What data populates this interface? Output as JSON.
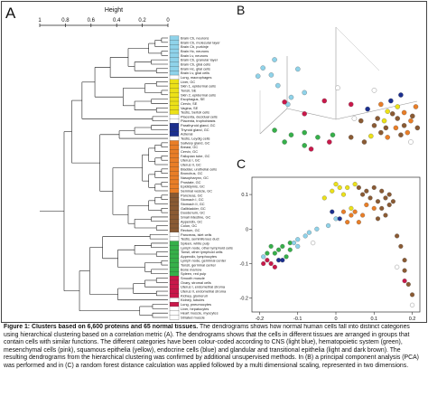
{
  "panel_labels": {
    "a": "A",
    "b": "B",
    "c": "C"
  },
  "caption": {
    "title": "Figure 1: Clusters based on 6,600 proteins and 65 normal tissues.",
    "body": " The dendrograms shows how normal human cells fall into distinct categories using hierarchical clustering based on a correlation metric (A). The dendrograms shows that the cells in different tissues are arranged in groups that contain cells with similar functions. The different categories have been colour-coded according to CNS (light blue), hematopoietic system (green), mesenchymal cells (pink), squamous epithelia (yellow), endocrine cells (blue) and glandular and transitional epithelia (light and dark brown). The resulting dendrograms from the hierarchical clustering was confirmed by additional unsupervised methods. In (B) a principal component analysis (PCA) was performed and in (C) a random forest distance calculation was applied followed by a multi dimensional scaling, represented in two dimensions."
  },
  "colors": {
    "cns": "#8fd3ea",
    "hematopoietic": "#36b04a",
    "mesenchymal": "#c9184a",
    "squamous": "#ece118",
    "endocrine": "#1b2f8f",
    "glandular_light": "#e97e27",
    "glandular_dark": "#8a5a33",
    "other": "#ffffff"
  },
  "chart_data": [
    {
      "type": "dendrogram",
      "panel": "A",
      "xlabel": "Height",
      "x_ticks": [
        "1",
        "0.8",
        "0.6",
        "0.4",
        "0.2",
        "0"
      ],
      "x_tick_values": [
        1.0,
        0.8,
        0.6,
        0.4,
        0.2,
        0.0
      ],
      "leaves": [
        {
          "label": "Brain Cb, neurons",
          "group": "cns"
        },
        {
          "label": "Brain Cb, molecular layer",
          "group": "cns"
        },
        {
          "label": "Brain Cb, purkinje",
          "group": "cns"
        },
        {
          "label": "Brain Hc, neurons",
          "group": "cns"
        },
        {
          "label": "Brain Lv, neurons",
          "group": "cns"
        },
        {
          "label": "Brain Cb, granular layer",
          "group": "cns"
        },
        {
          "label": "Brain Cb, glial cells",
          "group": "cns"
        },
        {
          "label": "Brain Hc, glial cells",
          "group": "cns"
        },
        {
          "label": "Brain Lv, glial cells",
          "group": "cns"
        },
        {
          "label": "Lung, macrophages",
          "group": "other"
        },
        {
          "label": "Liver, GC",
          "group": "squamous"
        },
        {
          "label": "Skin 1, epidermal cells",
          "group": "squamous"
        },
        {
          "label": "Tonsil, SE",
          "group": "squamous"
        },
        {
          "label": "Skin 2, epidermal cells",
          "group": "squamous"
        },
        {
          "label": "Esophagus, SE",
          "group": "squamous"
        },
        {
          "label": "Cervix, SE",
          "group": "squamous"
        },
        {
          "label": "Vagina, SE",
          "group": "squamous"
        },
        {
          "label": "Testis, Sertoli cells",
          "group": "squamous"
        },
        {
          "label": "Placenta, decidual cells",
          "group": "other"
        },
        {
          "label": "Placenta, trophoblasts",
          "group": "other"
        },
        {
          "label": "Parathyroid gland, GC",
          "group": "endocrine"
        },
        {
          "label": "Thyroid gland, GC",
          "group": "endocrine"
        },
        {
          "label": "Adrenal",
          "group": "endocrine"
        },
        {
          "label": "Testis, Leydig cells",
          "group": "other"
        },
        {
          "label": "Salivary gland, GC",
          "group": "glandular_light"
        },
        {
          "label": "Breast, GC",
          "group": "glandular_light"
        },
        {
          "label": "Cervix, GC",
          "group": "glandular_light"
        },
        {
          "label": "Fallopian tube, GC",
          "group": "glandular_light"
        },
        {
          "label": "Uterus I, GC",
          "group": "glandular_light"
        },
        {
          "label": "Uterus II, GC",
          "group": "glandular_light"
        },
        {
          "label": "Bladder, urothelial cells",
          "group": "glandular_light"
        },
        {
          "label": "Bronchus, GC",
          "group": "glandular_light"
        },
        {
          "label": "Nasopharynx, GC",
          "group": "glandular_light"
        },
        {
          "label": "Prostate, GC",
          "group": "glandular_light"
        },
        {
          "label": "Epididymis, GC",
          "group": "glandular_light"
        },
        {
          "label": "Seminal vesicle, GC",
          "group": "glandular_light"
        },
        {
          "label": "Pancreas, GC",
          "group": "glandular_dark"
        },
        {
          "label": "Stomach I, GC",
          "group": "glandular_dark"
        },
        {
          "label": "Stomach II, GC",
          "group": "glandular_dark"
        },
        {
          "label": "Gallbladder, GC",
          "group": "glandular_dark"
        },
        {
          "label": "Duodenum, GC",
          "group": "glandular_dark"
        },
        {
          "label": "Small intestine, GC",
          "group": "glandular_dark"
        },
        {
          "label": "Appendix, GC",
          "group": "glandular_dark"
        },
        {
          "label": "Colon, GC",
          "group": "glandular_dark"
        },
        {
          "label": "Rectum, GC",
          "group": "glandular_dark"
        },
        {
          "label": "Pancreas, islet cells",
          "group": "other"
        },
        {
          "label": "Testis, seminiferous duct",
          "group": "other"
        },
        {
          "label": "Spleen, white pulp",
          "group": "hematopoietic"
        },
        {
          "label": "Lymph node, other lymphoid cells",
          "group": "hematopoietic"
        },
        {
          "label": "Tonsil, other lymphoid cells",
          "group": "hematopoietic"
        },
        {
          "label": "Appendix, lymphocytes",
          "group": "hematopoietic"
        },
        {
          "label": "Lymph node, germinal center",
          "group": "hematopoietic"
        },
        {
          "label": "Tonsil, germinal center",
          "group": "hematopoietic"
        },
        {
          "label": "Bone marrow",
          "group": "hematopoietic"
        },
        {
          "label": "Spleen, red pulp",
          "group": "hematopoietic"
        },
        {
          "label": "Smooth muscle",
          "group": "mesenchymal"
        },
        {
          "label": "Ovary, stromal cells",
          "group": "mesenchymal"
        },
        {
          "label": "Uterus I, endometrial stroma",
          "group": "mesenchymal"
        },
        {
          "label": "Uterus II, endometrial stroma",
          "group": "mesenchymal"
        },
        {
          "label": "Kidney, glomeruli",
          "group": "mesenchymal"
        },
        {
          "label": "Kidney, tubules",
          "group": "other"
        },
        {
          "label": "Lung, pneumocytes",
          "group": "mesenchymal"
        },
        {
          "label": "Liver, hepatocytes",
          "group": "other"
        },
        {
          "label": "Heart muscle, myocytes",
          "group": "other"
        },
        {
          "label": "Striated muscle",
          "group": "other"
        }
      ]
    },
    {
      "type": "scatter3d",
      "panel": "B",
      "note": "PCA; axes unlabeled",
      "points": [
        {
          "x": 0.12,
          "y": 0.2,
          "g": "cns"
        },
        {
          "x": 0.05,
          "y": 0.27,
          "g": "cns"
        },
        {
          "x": 0.02,
          "y": 0.34,
          "g": "cns"
        },
        {
          "x": 0.1,
          "y": 0.33,
          "g": "cns"
        },
        {
          "x": 0.14,
          "y": 0.42,
          "g": "cns"
        },
        {
          "x": 0.26,
          "y": 0.28,
          "g": "cns"
        },
        {
          "x": 0.22,
          "y": 0.52,
          "g": "cns"
        },
        {
          "x": 0.3,
          "y": 0.48,
          "g": "cns"
        },
        {
          "x": 0.2,
          "y": 0.58,
          "g": "cns"
        },
        {
          "x": 0.18,
          "y": 0.56,
          "g": "mesenchymal"
        },
        {
          "x": 0.58,
          "y": 0.58,
          "g": "mesenchymal"
        },
        {
          "x": 0.3,
          "y": 0.66,
          "g": "mesenchymal"
        },
        {
          "x": 0.42,
          "y": 0.55,
          "g": "mesenchymal"
        },
        {
          "x": 0.12,
          "y": 0.8,
          "g": "hematopoietic"
        },
        {
          "x": 0.22,
          "y": 0.84,
          "g": "hematopoietic"
        },
        {
          "x": 0.3,
          "y": 0.82,
          "g": "hematopoietic"
        },
        {
          "x": 0.18,
          "y": 0.9,
          "g": "hematopoietic"
        },
        {
          "x": 0.3,
          "y": 0.93,
          "g": "hematopoietic"
        },
        {
          "x": 0.38,
          "y": 0.86,
          "g": "hematopoietic"
        },
        {
          "x": 0.47,
          "y": 0.84,
          "g": "hematopoietic"
        },
        {
          "x": 0.45,
          "y": 0.9,
          "g": "mesenchymal"
        },
        {
          "x": 0.34,
          "y": 0.96,
          "g": "mesenchymal"
        },
        {
          "x": 0.58,
          "y": 0.86,
          "g": "glandular_dark"
        },
        {
          "x": 0.66,
          "y": 0.9,
          "g": "glandular_dark"
        },
        {
          "x": 0.7,
          "y": 0.85,
          "g": "squamous"
        },
        {
          "x": 0.78,
          "y": 0.72,
          "g": "squamous"
        },
        {
          "x": 0.8,
          "y": 0.64,
          "g": "squamous"
        },
        {
          "x": 0.86,
          "y": 0.6,
          "g": "squamous"
        },
        {
          "x": 0.68,
          "y": 0.62,
          "g": "endocrine"
        },
        {
          "x": 0.82,
          "y": 0.55,
          "g": "endocrine"
        },
        {
          "x": 0.88,
          "y": 0.5,
          "g": "endocrine"
        },
        {
          "x": 0.76,
          "y": 0.58,
          "g": "glandular_light"
        },
        {
          "x": 0.9,
          "y": 0.65,
          "g": "glandular_light"
        },
        {
          "x": 0.94,
          "y": 0.72,
          "g": "glandular_light"
        },
        {
          "x": 0.85,
          "y": 0.78,
          "g": "glandular_light"
        },
        {
          "x": 0.92,
          "y": 0.82,
          "g": "glandular_light"
        },
        {
          "x": 0.8,
          "y": 0.86,
          "g": "glandular_light"
        },
        {
          "x": 0.97,
          "y": 0.6,
          "g": "glandular_light"
        },
        {
          "x": 0.74,
          "y": 0.7,
          "g": "glandular_dark"
        },
        {
          "x": 0.79,
          "y": 0.78,
          "g": "glandular_dark"
        },
        {
          "x": 0.86,
          "y": 0.7,
          "g": "glandular_dark"
        },
        {
          "x": 0.9,
          "y": 0.76,
          "g": "glandular_dark"
        },
        {
          "x": 0.83,
          "y": 0.66,
          "g": "glandular_dark"
        },
        {
          "x": 0.95,
          "y": 0.68,
          "g": "glandular_dark"
        },
        {
          "x": 0.72,
          "y": 0.76,
          "g": "glandular_dark"
        },
        {
          "x": 0.88,
          "y": 0.84,
          "g": "glandular_dark"
        },
        {
          "x": 0.98,
          "y": 0.78,
          "g": "glandular_dark"
        },
        {
          "x": 0.76,
          "y": 0.82,
          "g": "glandular_dark"
        },
        {
          "x": 0.64,
          "y": 0.72,
          "g": "glandular_dark"
        },
        {
          "x": 0.6,
          "y": 0.7,
          "g": "other"
        },
        {
          "x": 0.94,
          "y": 0.9,
          "g": "other"
        },
        {
          "x": 0.5,
          "y": 0.44,
          "g": "other"
        },
        {
          "x": 0.72,
          "y": 0.46,
          "g": "other"
        }
      ]
    },
    {
      "type": "scatter",
      "panel": "C",
      "xlim": [
        -0.22,
        0.22
      ],
      "ylim": [
        -0.24,
        0.15
      ],
      "x_ticks": [
        -0.2,
        -0.1,
        0.0,
        0.1,
        0.2
      ],
      "x_tick_labels": [
        "-0.2",
        "-0.1",
        "0",
        "0.1",
        "0.2"
      ],
      "y_ticks": [
        -0.2,
        -0.1,
        0.0,
        0.1
      ],
      "y_tick_labels": [
        "-0.2",
        "-0.1",
        "0",
        "0.1"
      ],
      "points": [
        {
          "x": -0.15,
          "y": -0.06,
          "g": "hematopoietic"
        },
        {
          "x": -0.14,
          "y": -0.05,
          "g": "hematopoietic"
        },
        {
          "x": -0.16,
          "y": -0.07,
          "g": "hematopoietic"
        },
        {
          "x": -0.13,
          "y": -0.08,
          "g": "hematopoietic"
        },
        {
          "x": -0.17,
          "y": -0.05,
          "g": "hematopoietic"
        },
        {
          "x": -0.12,
          "y": -0.06,
          "g": "hematopoietic"
        },
        {
          "x": -0.18,
          "y": -0.07,
          "g": "hematopoietic"
        },
        {
          "x": -0.12,
          "y": -0.04,
          "g": "hematopoietic"
        },
        {
          "x": -0.18,
          "y": -0.09,
          "g": "mesenchymal"
        },
        {
          "x": -0.17,
          "y": -0.1,
          "g": "mesenchymal"
        },
        {
          "x": -0.19,
          "y": -0.1,
          "g": "mesenchymal"
        },
        {
          "x": -0.16,
          "y": -0.11,
          "g": "mesenchymal"
        },
        {
          "x": -0.15,
          "y": -0.09,
          "g": "endocrine"
        },
        {
          "x": -0.14,
          "y": -0.09,
          "g": "endocrine"
        },
        {
          "x": -0.19,
          "y": -0.08,
          "g": "cns"
        },
        {
          "x": -0.11,
          "y": -0.04,
          "g": "cns"
        },
        {
          "x": -0.1,
          "y": -0.03,
          "g": "cns"
        },
        {
          "x": -0.08,
          "y": -0.02,
          "g": "cns"
        },
        {
          "x": -0.07,
          "y": -0.01,
          "g": "cns"
        },
        {
          "x": -0.05,
          "y": 0.0,
          "g": "cns"
        },
        {
          "x": -0.1,
          "y": -0.05,
          "g": "cns"
        },
        {
          "x": -0.02,
          "y": 0.01,
          "g": "cns"
        },
        {
          "x": 0.0,
          "y": 0.03,
          "g": "cns"
        },
        {
          "x": -0.03,
          "y": 0.09,
          "g": "squamous"
        },
        {
          "x": -0.01,
          "y": 0.11,
          "g": "squamous"
        },
        {
          "x": 0.0,
          "y": 0.13,
          "g": "squamous"
        },
        {
          "x": 0.01,
          "y": 0.12,
          "g": "squamous"
        },
        {
          "x": 0.02,
          "y": 0.1,
          "g": "squamous"
        },
        {
          "x": 0.03,
          "y": 0.12,
          "g": "squamous"
        },
        {
          "x": 0.05,
          "y": 0.13,
          "g": "squamous"
        },
        {
          "x": 0.04,
          "y": 0.06,
          "g": "squamous"
        },
        {
          "x": -0.01,
          "y": 0.05,
          "g": "endocrine"
        },
        {
          "x": 0.01,
          "y": 0.03,
          "g": "endocrine"
        },
        {
          "x": 0.02,
          "y": 0.05,
          "g": "glandular_light"
        },
        {
          "x": 0.04,
          "y": 0.04,
          "g": "glandular_light"
        },
        {
          "x": 0.05,
          "y": 0.05,
          "g": "glandular_light"
        },
        {
          "x": 0.06,
          "y": 0.02,
          "g": "glandular_light"
        },
        {
          "x": 0.07,
          "y": 0.04,
          "g": "glandular_light"
        },
        {
          "x": 0.08,
          "y": 0.07,
          "g": "glandular_light"
        },
        {
          "x": 0.1,
          "y": 0.06,
          "g": "glandular_light"
        },
        {
          "x": 0.03,
          "y": 0.02,
          "g": "glandular_light"
        },
        {
          "x": 0.06,
          "y": 0.12,
          "g": "glandular_dark"
        },
        {
          "x": 0.08,
          "y": 0.11,
          "g": "glandular_dark"
        },
        {
          "x": 0.1,
          "y": 0.12,
          "g": "glandular_dark"
        },
        {
          "x": 0.12,
          "y": 0.11,
          "g": "glandular_dark"
        },
        {
          "x": 0.09,
          "y": 0.09,
          "g": "glandular_dark"
        },
        {
          "x": 0.11,
          "y": 0.08,
          "g": "glandular_dark"
        },
        {
          "x": 0.07,
          "y": 0.1,
          "g": "glandular_dark"
        },
        {
          "x": 0.13,
          "y": 0.09,
          "g": "glandular_dark"
        },
        {
          "x": 0.14,
          "y": 0.1,
          "g": "glandular_dark"
        },
        {
          "x": 0.15,
          "y": 0.08,
          "g": "glandular_dark"
        },
        {
          "x": 0.12,
          "y": 0.06,
          "g": "glandular_dark"
        },
        {
          "x": 0.11,
          "y": 0.03,
          "g": "glandular_dark"
        },
        {
          "x": 0.13,
          "y": 0.04,
          "g": "glandular_dark"
        },
        {
          "x": 0.14,
          "y": 0.07,
          "g": "glandular_dark"
        },
        {
          "x": 0.16,
          "y": -0.02,
          "g": "glandular_dark"
        },
        {
          "x": 0.17,
          "y": -0.05,
          "g": "glandular_dark"
        },
        {
          "x": 0.18,
          "y": -0.09,
          "g": "glandular_dark"
        },
        {
          "x": 0.18,
          "y": -0.12,
          "g": "glandular_dark"
        },
        {
          "x": 0.19,
          "y": -0.16,
          "g": "glandular_dark"
        },
        {
          "x": 0.2,
          "y": -0.19,
          "g": "glandular_dark"
        },
        {
          "x": 0.18,
          "y": -0.15,
          "g": "mesenchymal"
        },
        {
          "x": 0.16,
          "y": -0.11,
          "g": "other"
        },
        {
          "x": 0.2,
          "y": -0.22,
          "g": "other"
        },
        {
          "x": -0.06,
          "y": -0.04,
          "g": "other"
        }
      ]
    }
  ]
}
